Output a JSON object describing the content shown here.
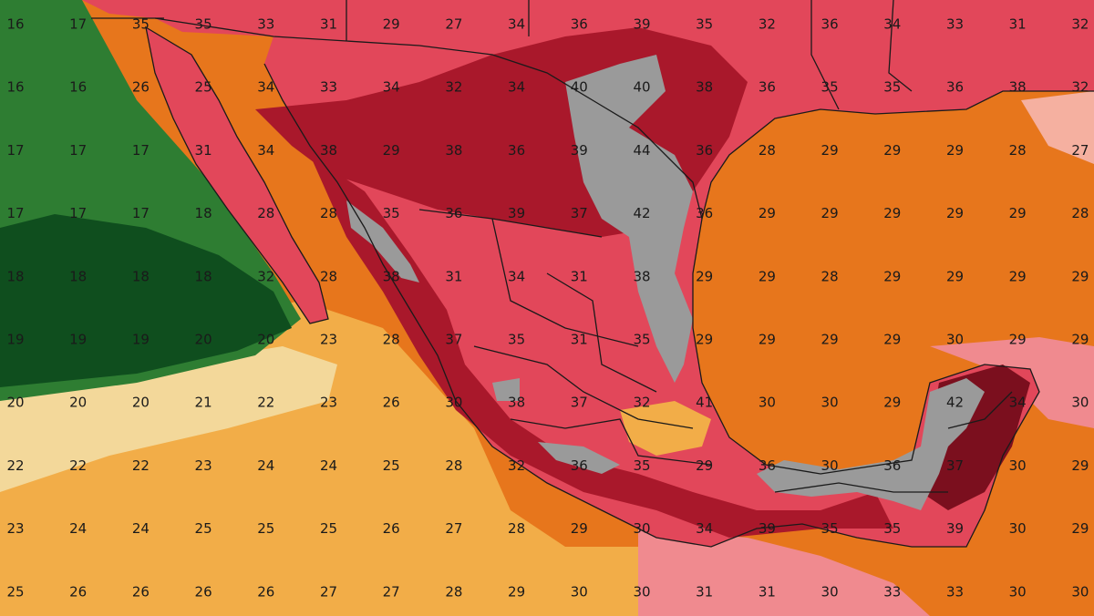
{
  "map": {
    "palette": {
      "cool_green_dark": "#0f4e1e",
      "cool_green": "#2e7d32",
      "pale_yellow": "#f3d89a",
      "light_orange": "#f2ad48",
      "orange": "#e7761c",
      "pink": "#f08a8f",
      "red": "#e2475a",
      "dark_red": "#a9182b",
      "maroon": "#7b0f1e",
      "gray_extreme": "#9a9a9a",
      "border": "#1a1a1a"
    },
    "grid_rows": [
      [
        "16",
        "17",
        "35",
        "35",
        "33",
        "31",
        "29",
        "27",
        "34",
        "36",
        "39",
        "35",
        "32",
        "36",
        "34",
        "33",
        "31",
        "32"
      ],
      [
        "16",
        "16",
        "26",
        "25",
        "34",
        "33",
        "34",
        "32",
        "34",
        "40",
        "40",
        "38",
        "36",
        "35",
        "35",
        "36",
        "38",
        "32"
      ],
      [
        "17",
        "17",
        "17",
        "31",
        "34",
        "38",
        "29",
        "38",
        "36",
        "39",
        "44",
        "36",
        "28",
        "29",
        "29",
        "29",
        "28",
        "27"
      ],
      [
        "17",
        "17",
        "17",
        "18",
        "28",
        "28",
        "35",
        "36",
        "39",
        "37",
        "42",
        "36",
        "29",
        "29",
        "29",
        "29",
        "29",
        "28"
      ],
      [
        "18",
        "18",
        "18",
        "18",
        "32",
        "28",
        "38",
        "31",
        "34",
        "31",
        "38",
        "29",
        "29",
        "28",
        "29",
        "29",
        "29",
        "29"
      ],
      [
        "19",
        "19",
        "19",
        "20",
        "20",
        "23",
        "28",
        "37",
        "35",
        "31",
        "35",
        "29",
        "29",
        "29",
        "29",
        "30",
        "29",
        "29"
      ],
      [
        "20",
        "20",
        "20",
        "21",
        "22",
        "23",
        "26",
        "30",
        "38",
        "37",
        "32",
        "41",
        "30",
        "30",
        "29",
        "42",
        "34",
        "30"
      ],
      [
        "22",
        "22",
        "22",
        "23",
        "24",
        "24",
        "25",
        "28",
        "32",
        "36",
        "35",
        "29",
        "36",
        "30",
        "36",
        "37",
        "30",
        "29"
      ],
      [
        "23",
        "24",
        "24",
        "25",
        "25",
        "25",
        "26",
        "27",
        "28",
        "29",
        "30",
        "34",
        "39",
        "35",
        "35",
        "39",
        "30",
        "29"
      ],
      [
        "25",
        "26",
        "26",
        "26",
        "26",
        "27",
        "27",
        "28",
        "29",
        "30",
        "30",
        "31",
        "31",
        "30",
        "33",
        "33",
        "30",
        "30"
      ]
    ]
  }
}
